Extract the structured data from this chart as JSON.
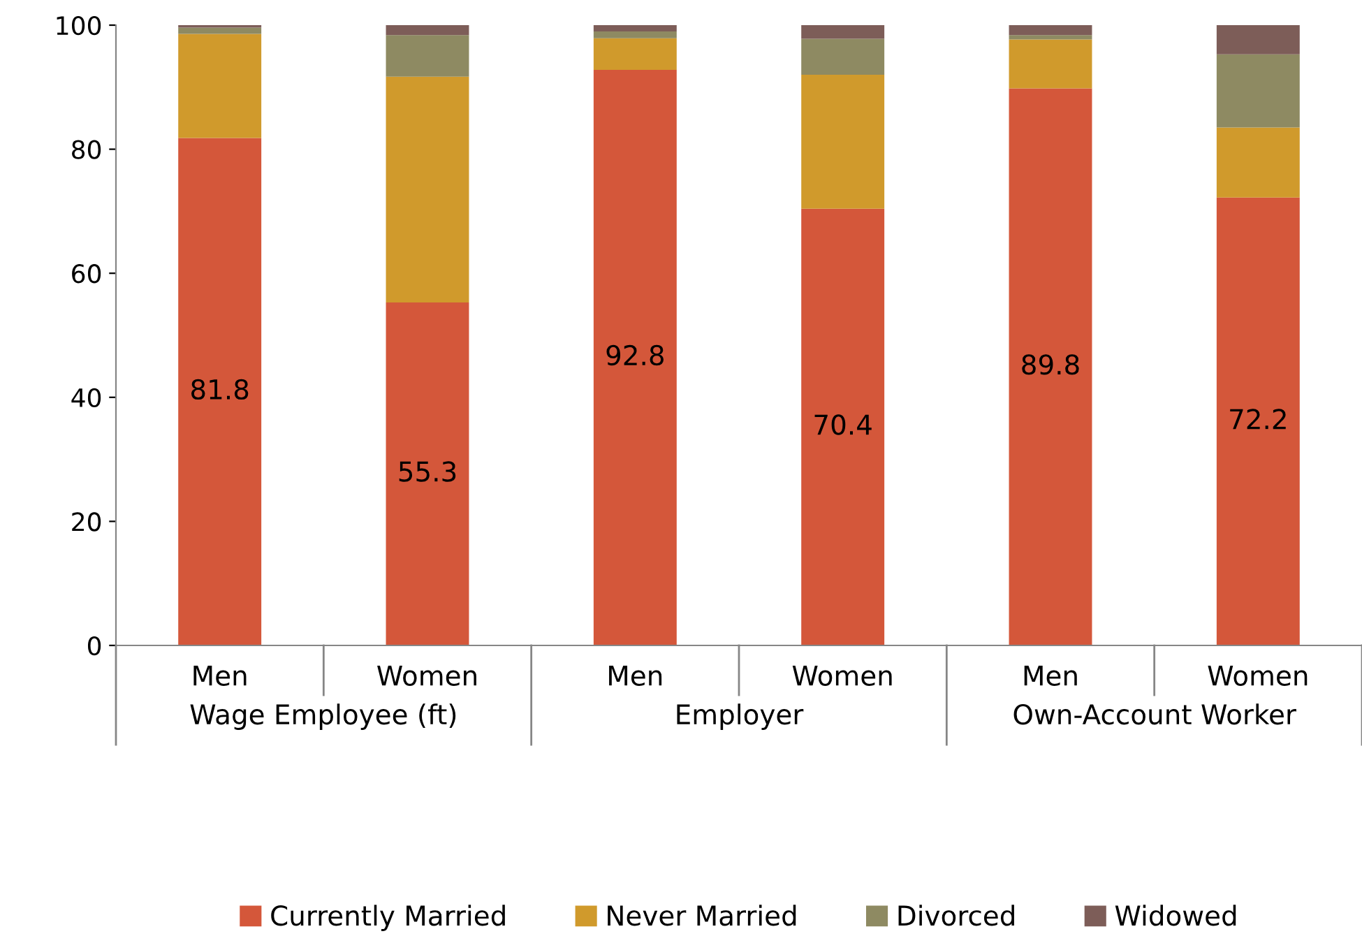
{
  "chart_data": {
    "type": "bar",
    "stacked": true,
    "categories": [
      "Men",
      "Women",
      "Men",
      "Women",
      "Men",
      "Women"
    ],
    "annotations": [
      "Wage Employee (ft)",
      "Employer",
      "Own-Account Worker"
    ],
    "series": [
      {
        "name": "Currently Married",
        "color": "#d4573a",
        "values": [
          81.8,
          55.3,
          92.8,
          70.4,
          89.8,
          72.2
        ],
        "value_labels": [
          "81.8",
          "55.3",
          "92.8",
          "70.4",
          "89.8",
          "72.2"
        ]
      },
      {
        "name": "Never Married",
        "color": "#d09a2c",
        "values": [
          16.8,
          36.4,
          5.1,
          21.6,
          7.9,
          11.3
        ]
      },
      {
        "name": "Divorced",
        "color": "#8e8a62",
        "values": [
          1.0,
          6.7,
          1.1,
          5.8,
          0.7,
          11.8
        ]
      },
      {
        "name": "Widowed",
        "color": "#7d5d58",
        "values": [
          0.4,
          1.6,
          1.0,
          2.2,
          1.6,
          4.7
        ]
      }
    ],
    "ylim": [
      0,
      100
    ],
    "yticks": [
      0,
      20,
      40,
      60,
      80,
      100
    ],
    "grid": false,
    "legend": "bottom"
  }
}
